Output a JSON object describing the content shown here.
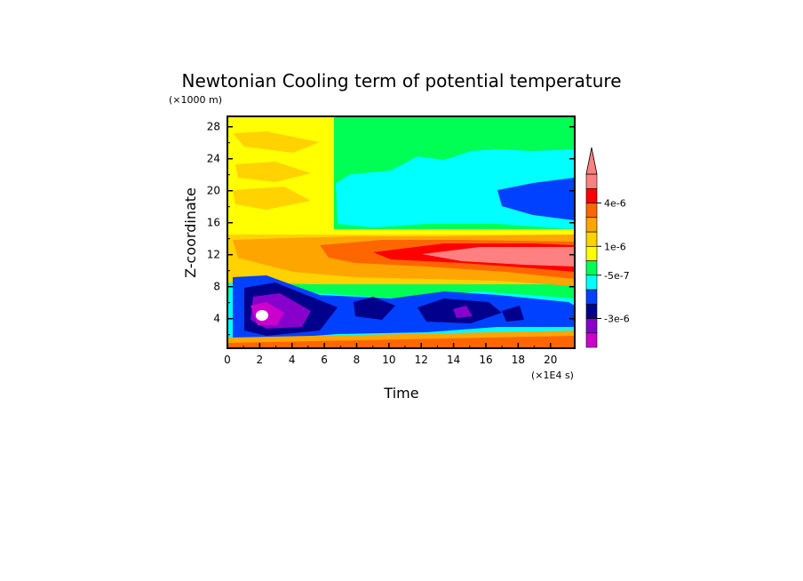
{
  "chart_data": {
    "type": "heatmap",
    "title": "Newtonian Cooling term of potential temperature",
    "xlabel": "Time",
    "ylabel": "Z-coordinate",
    "x_unit": "(×1E4 s)",
    "y_unit": "(×1000 m)",
    "xlim": [
      0,
      21.5
    ],
    "ylim": [
      0.3,
      29.3
    ],
    "x_ticks": [
      "0",
      "2",
      "4",
      "6",
      "8",
      "10",
      "12",
      "14",
      "16",
      "18",
      "20"
    ],
    "y_ticks": [
      "4",
      "8",
      "12",
      "16",
      "20",
      "24",
      "28"
    ],
    "colorbar": {
      "labels": [
        {
          "level": 10,
          "text": "4e-6"
        },
        {
          "level": 7,
          "text": "1e-6"
        },
        {
          "level": 5,
          "text": "-5e-7"
        },
        {
          "level": 2,
          "text": "-3e-6"
        }
      ],
      "colors": [
        "#cc00cc",
        "#8800cc",
        "#00008c",
        "#0040ff",
        "#00ffff",
        "#00ff55",
        "#ffff00",
        "#ffd200",
        "#ffa500",
        "#ff6600",
        "#ff0000",
        "#ff8080"
      ],
      "extend": "max"
    },
    "grid": false
  }
}
